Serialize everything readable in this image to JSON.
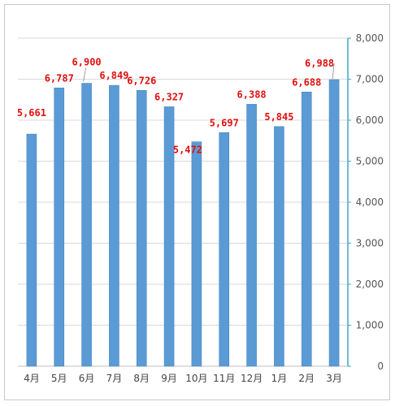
{
  "colors": {
    "bar_fill": "#5b9bd5",
    "bar_edge": "#4a86c0",
    "grid": "#d9d9d9",
    "axis": "#3aa9c9",
    "data_label": "#e01010"
  },
  "chart_data": {
    "type": "bar",
    "title": "",
    "xlabel": "",
    "ylabel": "",
    "categories": [
      "4月",
      "5月",
      "6月",
      "7月",
      "8月",
      "9月",
      "10月",
      "11月",
      "12月",
      "1月",
      "2月",
      "3月"
    ],
    "values": [
      5661,
      6787,
      6900,
      6849,
      6726,
      6327,
      5472,
      5697,
      6388,
      5845,
      6688,
      6988
    ],
    "data_labels": [
      "5,661",
      "6,787",
      "6,900",
      "6,849",
      "6,726",
      "6,327",
      "5,472",
      "5,697",
      "6,388",
      "5,845",
      "6,688",
      "6,988"
    ],
    "ylim": [
      0,
      8000
    ],
    "y_ticks": [
      0,
      1000,
      2000,
      3000,
      4000,
      5000,
      6000,
      7000,
      8000
    ],
    "y_tick_labels": [
      "0",
      "1,000",
      "2,000",
      "3,000",
      "4,000",
      "5,000",
      "6,000",
      "7,000",
      "8,000"
    ],
    "y_axis_side": "right",
    "grid": true,
    "legend": "none"
  }
}
